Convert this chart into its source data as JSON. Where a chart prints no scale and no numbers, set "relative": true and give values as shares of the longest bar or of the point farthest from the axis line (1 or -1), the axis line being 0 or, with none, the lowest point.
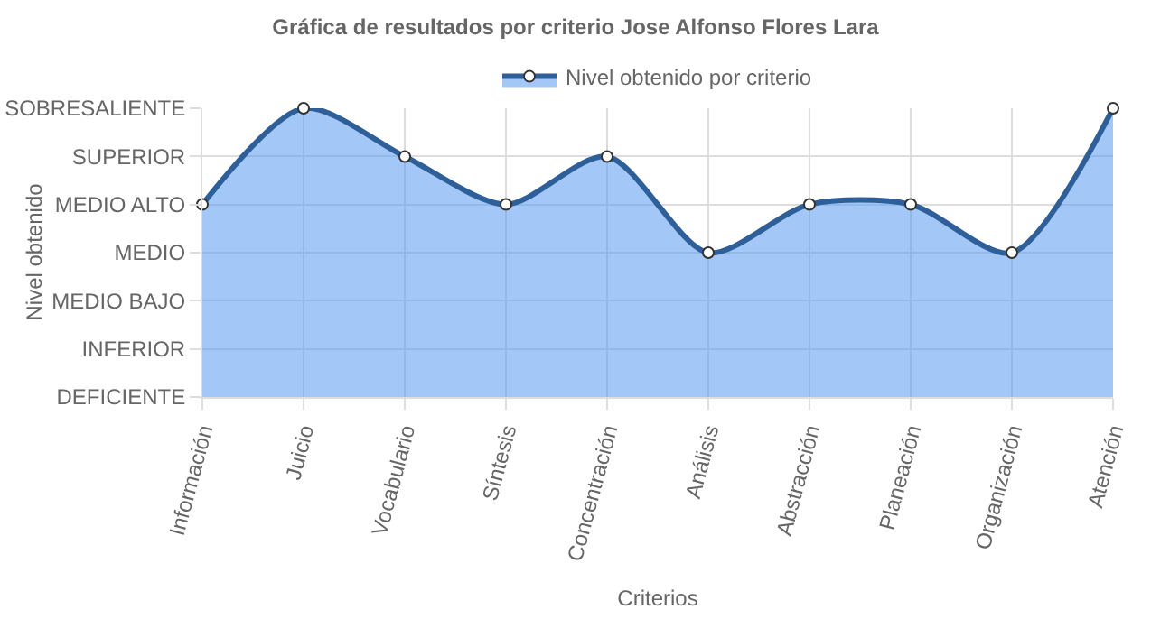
{
  "chart_data": {
    "type": "area",
    "title": "Gráfica de resultados por criterio Jose Alfonso Flores Lara",
    "xlabel": "Criterios",
    "annotations": [
      "Nivel obtenido"
    ],
    "categories": [
      "Información",
      "Juicio",
      "Vocabulario",
      "Síntesis",
      "Concentración",
      "Análisis",
      "Abstracción",
      "Planeación",
      "Organización",
      "Atención"
    ],
    "y_categories": [
      "SOBRESALIENTE",
      "SUPERIOR",
      "MEDIO ALTO",
      "MEDIO",
      "MEDIO BAJO",
      "INFERIOR",
      "DEFICIENTE"
    ],
    "series": [
      {
        "name": "Nivel obtenido por criterio",
        "color": "#2f5f98",
        "values": [
          0.667,
          1,
          0.833,
          0.667,
          0.833,
          0.5,
          0.667,
          0.667,
          0.5,
          1
        ]
      }
    ],
    "relative": true,
    "grid": true,
    "legend": "top",
    "marker": "circle",
    "line_style": "solid"
  }
}
